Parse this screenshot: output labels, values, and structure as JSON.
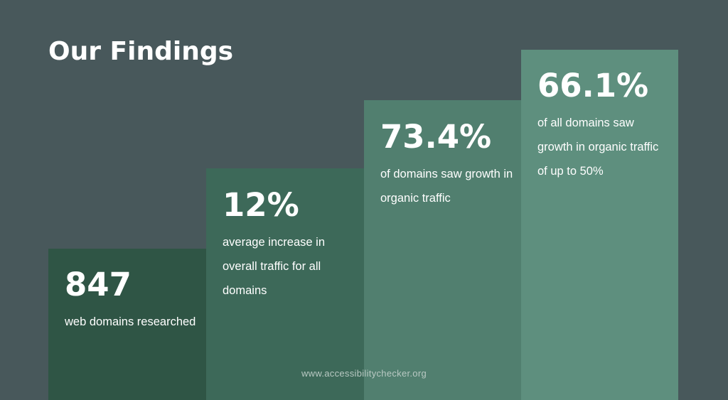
{
  "title": "Our Findings",
  "stats": [
    {
      "value": "847",
      "description": "web domains researched"
    },
    {
      "value": "12%",
      "description": "average increase in overall traffic for all domains"
    },
    {
      "value": "73.4%",
      "description": "of domains saw growth in organic traffic"
    },
    {
      "value": "66.1%",
      "description": "of all domains saw growth in organic traffic of up to 50%"
    }
  ],
  "footer": "www.accessibilitychecker.org",
  "colors": {
    "background": "#48585b",
    "bars": [
      "#2f5545",
      "#3d6959",
      "#517f6f",
      "#5e8f7e"
    ],
    "text": "#ffffff"
  }
}
